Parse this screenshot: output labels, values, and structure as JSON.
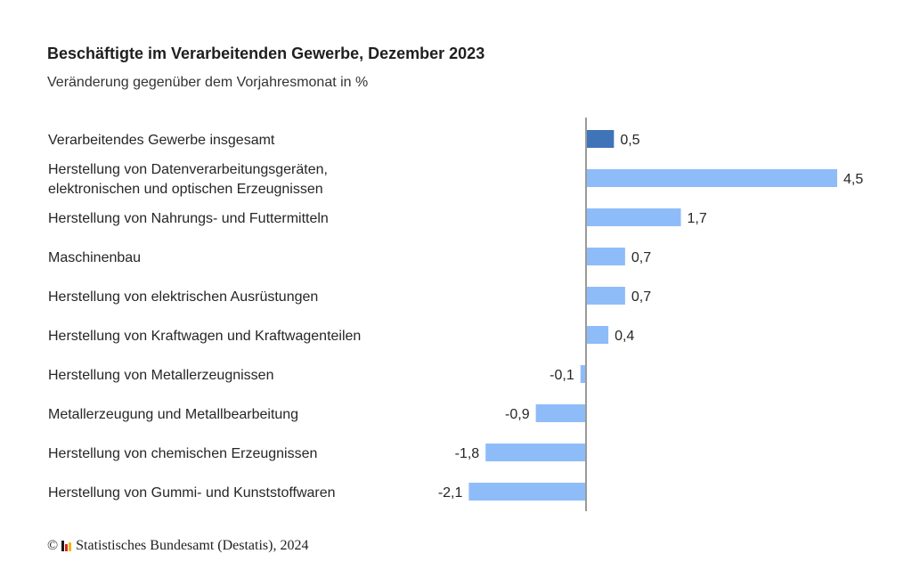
{
  "chart_data": {
    "type": "bar",
    "orientation": "horizontal",
    "title": "Beschäftigte im Verarbeitenden Gewerbe, Dezember 2023",
    "subtitle": "Veränderung gegenüber dem Vorjahresmonat in %",
    "categories": [
      [
        "Verarbeitendes Gewerbe insgesamt"
      ],
      [
        "Herstellung von Datenverarbeitungsgeräten,",
        "elektronischen und optischen Erzeugnissen"
      ],
      [
        "Herstellung von Nahrungs- und Futtermitteln"
      ],
      [
        "Maschinenbau"
      ],
      [
        "Herstellung von elektrischen Ausrüstungen"
      ],
      [
        "Herstellung von Kraftwagen und Kraftwagenteilen"
      ],
      [
        "Herstellung von Metallerzeugnissen"
      ],
      [
        "Metallerzeugung und Metallbearbeitung"
      ],
      [
        "Herstellung von chemischen Erzeugnissen"
      ],
      [
        "Herstellung von Gummi- und Kunststoffwaren"
      ]
    ],
    "values": [
      0.5,
      4.5,
      1.7,
      0.7,
      0.7,
      0.4,
      -0.1,
      -0.9,
      -1.8,
      -2.1
    ],
    "value_labels": [
      "0,5",
      "4,5",
      "1,7",
      "0,7",
      "0,7",
      "0,4",
      "-0,1",
      "-0,9",
      "-1,8",
      "-2,1"
    ],
    "highlight_index": 0,
    "xlim": [
      -2.1,
      4.5
    ],
    "grid": false,
    "legend": "none",
    "colors": {
      "highlight": "#3f74b8",
      "bar": "#8ebcf9",
      "axis": "#9a9a9a"
    }
  },
  "footer": {
    "copyright_symbol": "©",
    "source": "Statistisches Bundesamt (Destatis), 2024",
    "logo_icon": "destatis-bars-icon",
    "logo_colors": [
      "#1a1a1a",
      "#d7261e",
      "#f2b705"
    ]
  }
}
